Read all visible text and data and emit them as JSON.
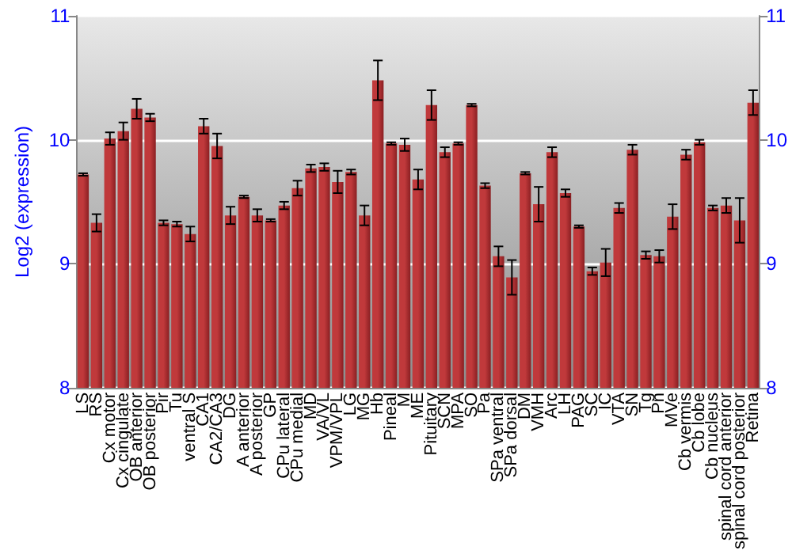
{
  "chart_data": {
    "type": "bar",
    "ylabel": "Log2 (expression)",
    "categories": [
      "LS",
      "RS",
      "Cx motor",
      "Cx cingulate",
      "OB anterior",
      "OB posterior",
      "Pir",
      "Tu",
      "ventral S",
      "CA1",
      "CA2/CA3",
      "DG",
      "A anterior",
      "A posterior",
      "GP",
      "CPu lateral",
      "CPu medial",
      "MD",
      "VA/VL",
      "VPM/VPL",
      "LG",
      "MG",
      "Hb",
      "Pineal",
      "M",
      "ME",
      "Pituitary",
      "SCN",
      "MPA",
      "SO",
      "Pa",
      "SPa ventral",
      "SPa dorsal",
      "DM",
      "VMH",
      "Arc",
      "LH",
      "PAG",
      "SC",
      "IC",
      "VTA",
      "SN",
      "Tg",
      "Pn",
      "MVe",
      "Cb vermis",
      "Cb lobe",
      "Cb nucleus",
      "spinal cord anterior",
      "spinal cord posterior",
      "Retina"
    ],
    "values": [
      9.72,
      9.33,
      10.01,
      10.07,
      10.25,
      10.18,
      9.33,
      9.32,
      9.24,
      10.11,
      9.95,
      9.39,
      9.54,
      9.39,
      9.35,
      9.47,
      9.61,
      9.77,
      9.78,
      9.66,
      9.74,
      9.39,
      10.48,
      9.97,
      9.96,
      9.68,
      10.28,
      9.9,
      9.97,
      10.28,
      9.63,
      9.06,
      8.89,
      9.73,
      9.48,
      9.9,
      9.57,
      9.3,
      8.94,
      9.01,
      9.45,
      9.92,
      9.07,
      9.06,
      9.38,
      9.88,
      9.98,
      9.45,
      9.47,
      9.35,
      10.3
    ],
    "errors": [
      0.01,
      0.07,
      0.05,
      0.07,
      0.08,
      0.03,
      0.02,
      0.02,
      0.06,
      0.06,
      0.1,
      0.07,
      0.01,
      0.05,
      0.01,
      0.03,
      0.06,
      0.03,
      0.03,
      0.09,
      0.02,
      0.08,
      0.16,
      0.01,
      0.05,
      0.08,
      0.12,
      0.04,
      0.01,
      0.01,
      0.02,
      0.08,
      0.14,
      0.01,
      0.14,
      0.04,
      0.03,
      0.01,
      0.03,
      0.11,
      0.04,
      0.04,
      0.03,
      0.05,
      0.1,
      0.04,
      0.02,
      0.02,
      0.06,
      0.18,
      0.1
    ],
    "color": "#c0393b",
    "ylim": [
      8,
      11
    ],
    "yticks": [
      8,
      9,
      10,
      11
    ],
    "y2lim": [
      8,
      11
    ],
    "y2ticks": [
      8,
      9,
      10,
      11
    ],
    "grid": "y"
  }
}
